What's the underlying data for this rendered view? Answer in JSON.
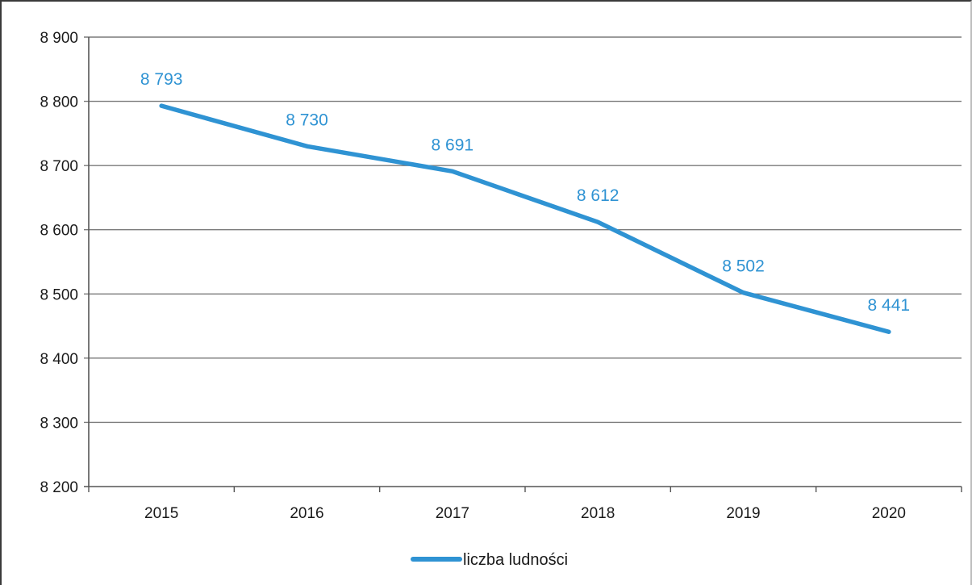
{
  "chart_data": {
    "type": "line",
    "title": "",
    "xlabel": "",
    "ylabel": "",
    "categories": [
      "2015",
      "2016",
      "2017",
      "2018",
      "2019",
      "2020"
    ],
    "series": [
      {
        "name": "liczba ludności",
        "values": [
          8793,
          8730,
          8691,
          8612,
          8502,
          8441
        ],
        "labels": [
          "8 793",
          "8 730",
          "8 691",
          "8 612",
          "8 502",
          "8 441"
        ],
        "color": "#2f93d3"
      }
    ],
    "ylim": [
      8200,
      8900
    ],
    "yticks": [
      8900,
      8800,
      8700,
      8600,
      8500,
      8400,
      8300,
      8200
    ],
    "ytick_labels": [
      "8 900",
      "8 800",
      "8 700",
      "8 600",
      "8 500",
      "8 400",
      "8 300",
      "8 200"
    ],
    "grid": true,
    "legend": "bottom-center"
  }
}
